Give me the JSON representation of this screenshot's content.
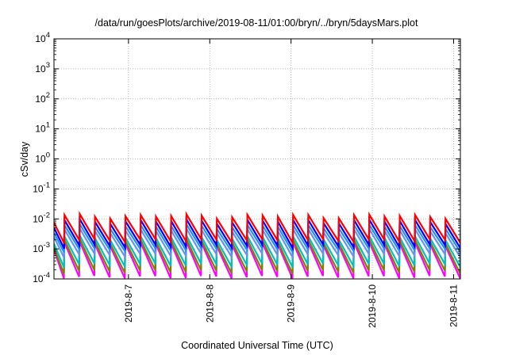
{
  "chart_data": {
    "type": "line",
    "title": "/data/run/goesPlots/archive/2019-08-11/01:00/bryn/../bryn/5daysMars.plot",
    "xlabel": "Coordinated Universal Time (UTC)",
    "ylabel": "cSv/day",
    "xlim": [
      "2019-08-06 02:00",
      "2019-08-11 02:00"
    ],
    "ylim": [
      0.0001,
      10000
    ],
    "yscale": "log",
    "grid": true,
    "x_ticks": [
      {
        "x": "2019-08-07 00:00",
        "label": "2019-8-7"
      },
      {
        "x": "2019-08-08 00:00",
        "label": "2019-8-8"
      },
      {
        "x": "2019-08-09 00:00",
        "label": "2019-8-9"
      },
      {
        "x": "2019-08-10 00:00",
        "label": "2019-8-10"
      },
      {
        "x": "2019-08-11 00:00",
        "label": "2019-8-11"
      }
    ],
    "y_ticks": [
      {
        "value": 0.0001,
        "base": "10",
        "exp": "-4"
      },
      {
        "value": 0.001,
        "base": "10",
        "exp": "-3"
      },
      {
        "value": 0.01,
        "base": "10",
        "exp": "-2"
      },
      {
        "value": 0.1,
        "base": "10",
        "exp": "-1"
      },
      {
        "value": 1,
        "base": "10",
        "exp": "0"
      },
      {
        "value": 10,
        "base": "10",
        "exp": "1"
      },
      {
        "value": 100,
        "base": "10",
        "exp": "2"
      },
      {
        "value": 1000,
        "base": "10",
        "exp": "3"
      },
      {
        "value": 10000,
        "base": "10",
        "exp": "4"
      }
    ],
    "pattern": {
      "description": "sawtooth: sharp rise at each cycle start followed by decay",
      "cycle_hours": 4.5
    },
    "series": [
      {
        "color": "#ff00ff",
        "peak": 0.0016,
        "trough": 0.00011
      },
      {
        "color": "#808000",
        "peak": 0.0019,
        "trough": 0.00017
      },
      {
        "color": "#00c0c0",
        "peak": 0.0025,
        "trough": 0.00028
      },
      {
        "color": "#6495ed",
        "peak": 0.0042,
        "trough": 0.0006
      },
      {
        "color": "#1e90ff",
        "peak": 0.0058,
        "trough": 0.0009
      },
      {
        "color": "#0000ff",
        "peak": 0.0085,
        "trough": 0.0012
      },
      {
        "color": "#ff0000",
        "peak": 0.0125,
        "trough": 0.0018
      }
    ]
  }
}
